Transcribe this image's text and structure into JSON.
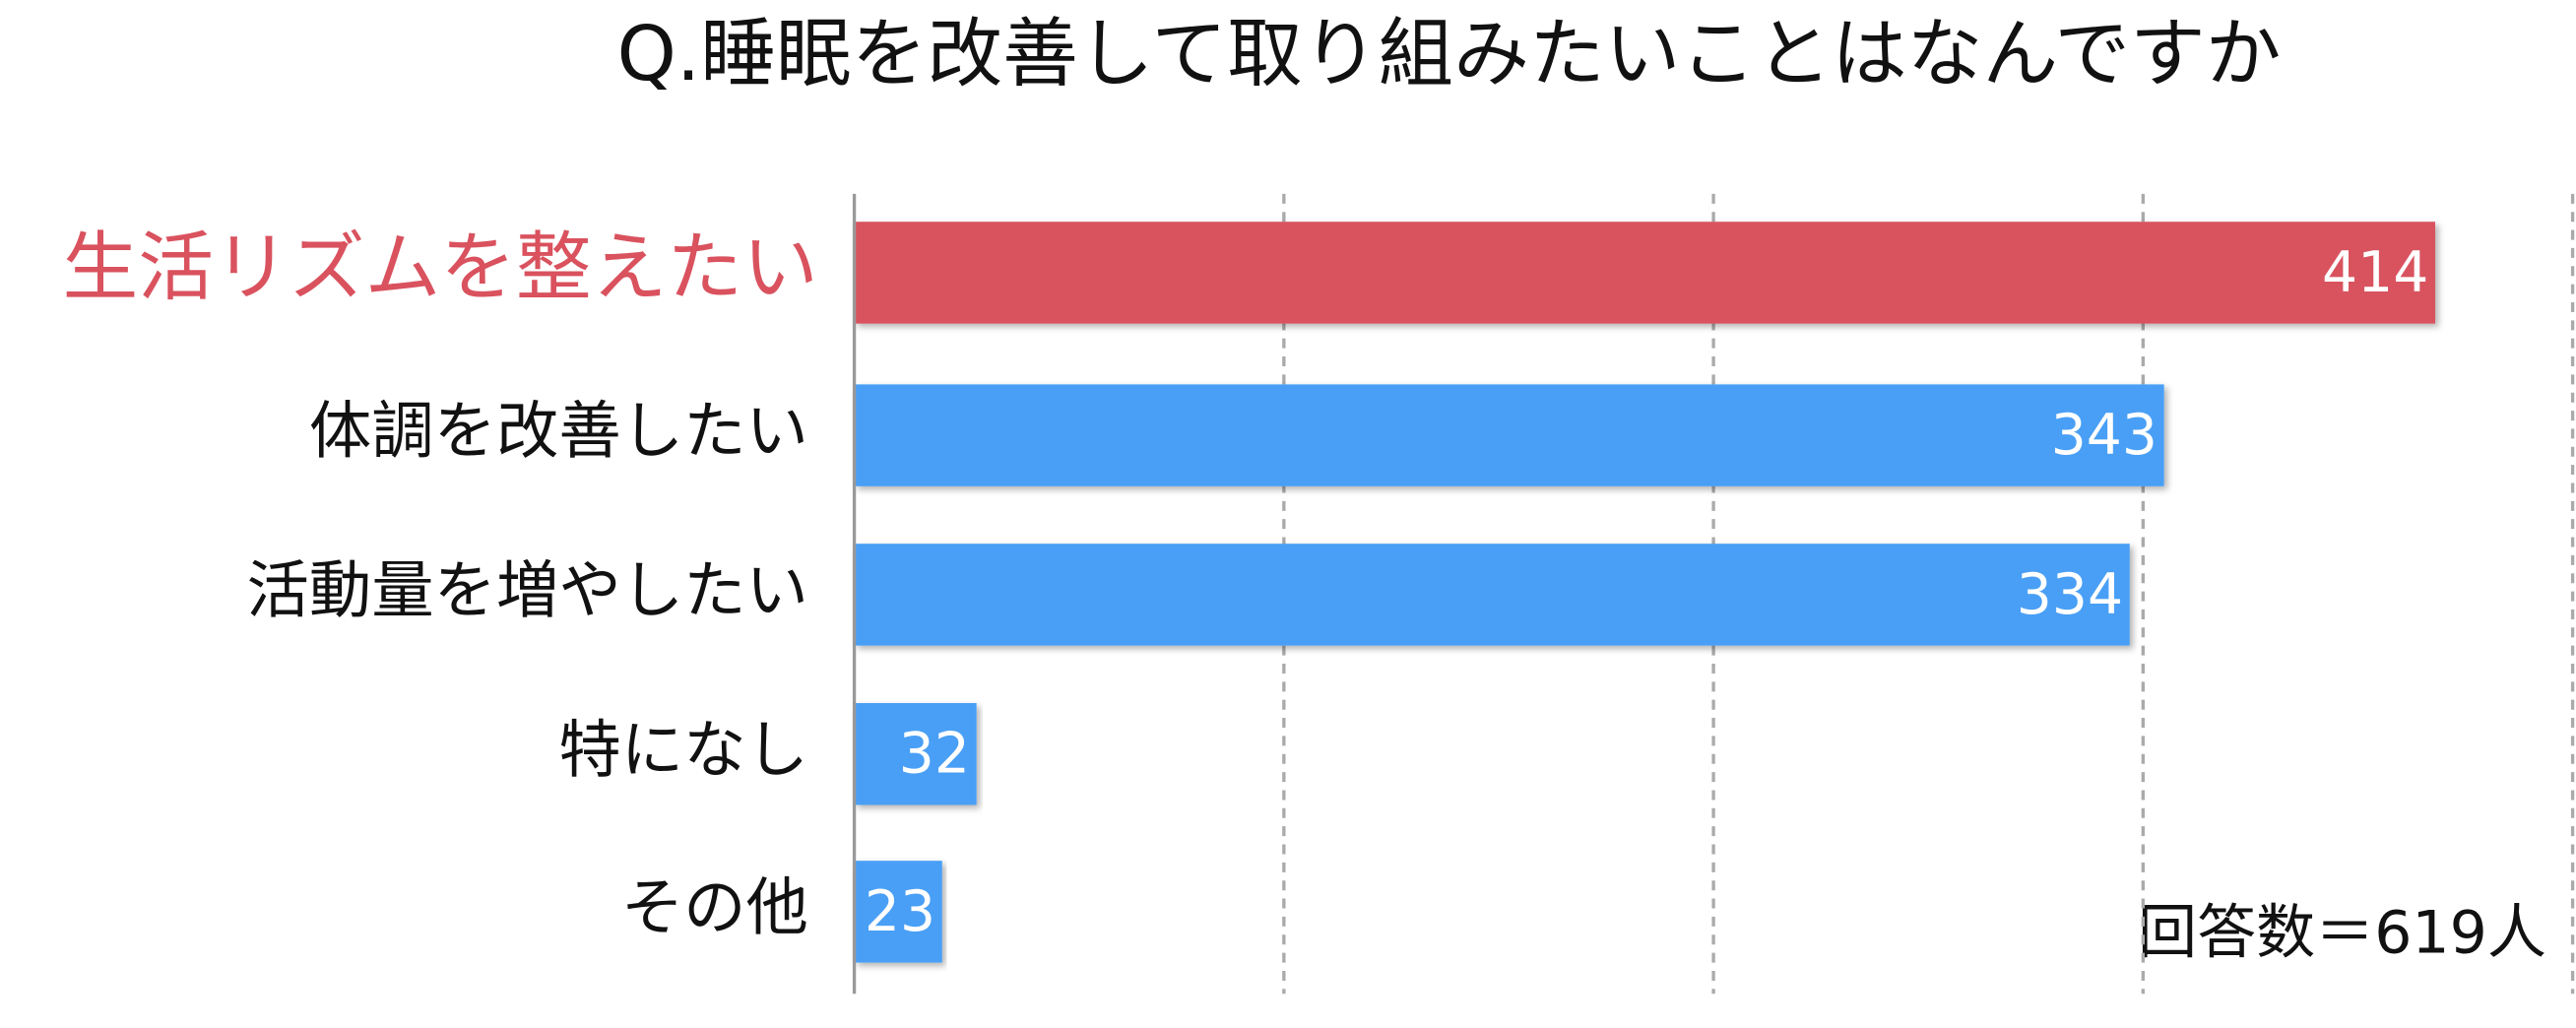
{
  "chart_data": {
    "type": "bar",
    "orientation": "horizontal",
    "title": "Q.睡眠を改善して取り組みたいことはなんですか",
    "categories": [
      "生活リズムを整えたい",
      "体調を改善したい",
      "活動量を増やしたい",
      "特になし",
      "その他"
    ],
    "values": [
      414,
      343,
      334,
      32,
      23
    ],
    "color": "#4a9ff5",
    "highlight_color": "#d9525e",
    "highlight_index": 0,
    "xlim": [
      0,
      450
    ],
    "xticks": [
      112.5,
      225,
      337.5,
      450
    ],
    "grid": true,
    "annotation": "回答数＝619人"
  }
}
